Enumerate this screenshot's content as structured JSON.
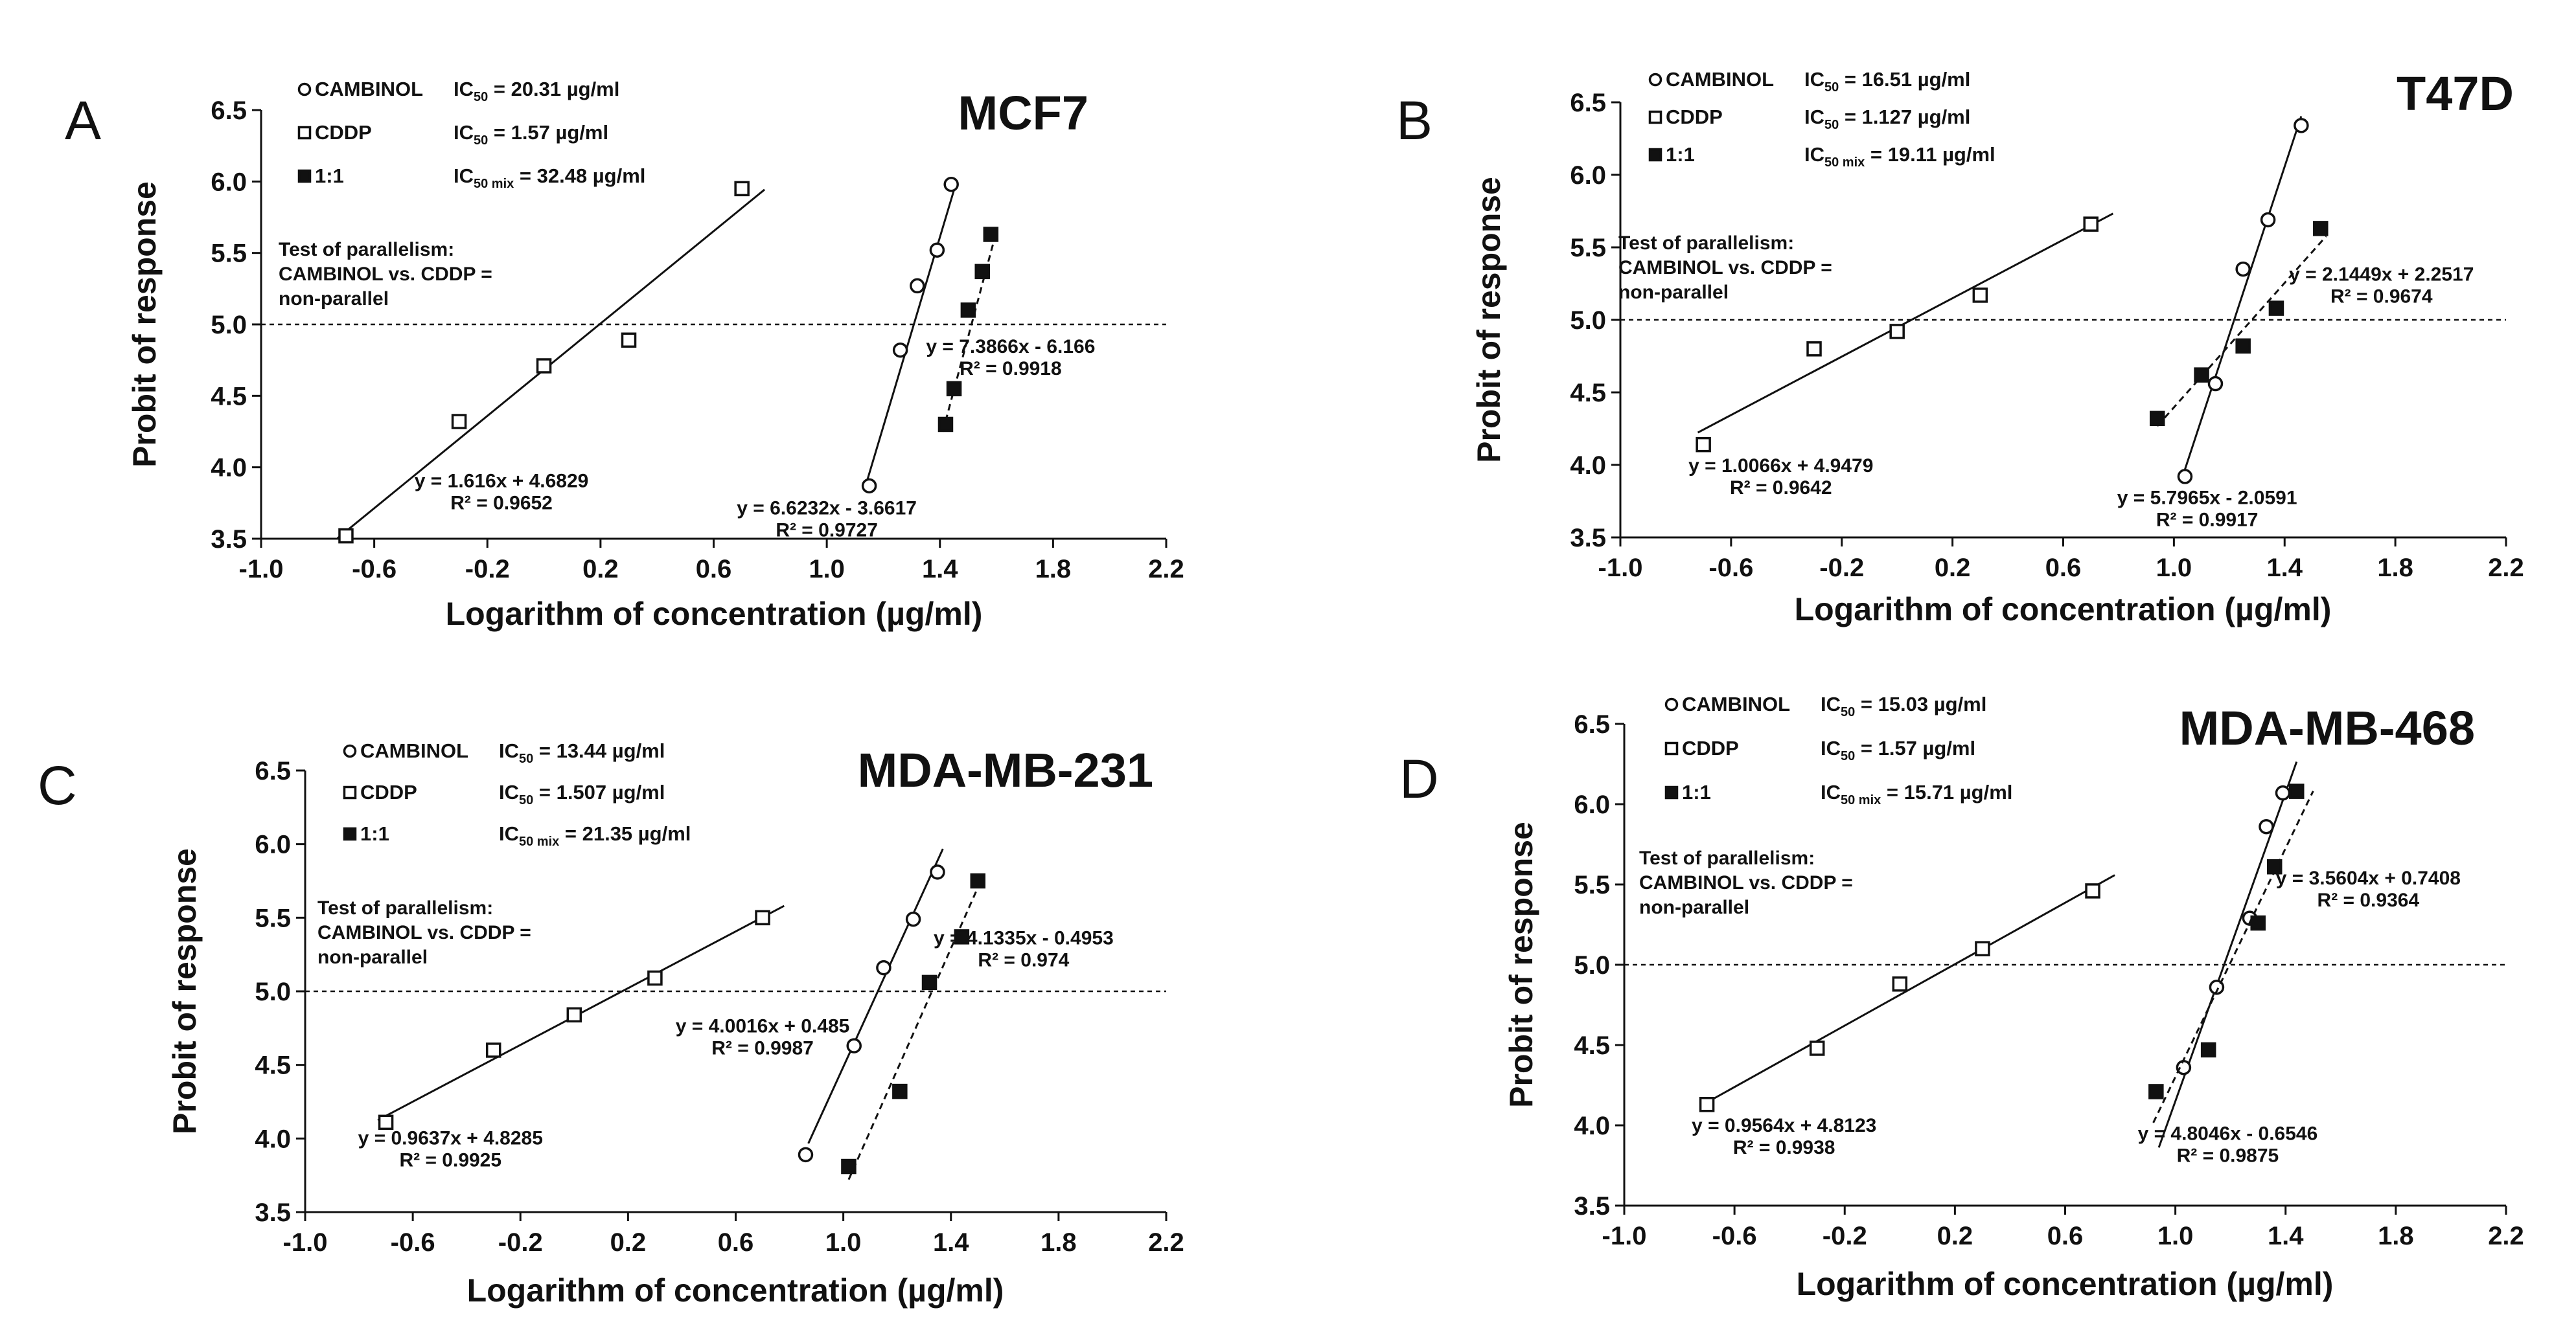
{
  "colors": {
    "ink": "#111111",
    "background": "#ffffff",
    "marker_fill_open": "#ffffff",
    "marker_fill_solid": "#111111"
  },
  "chart_data": [
    {
      "panel": "A",
      "type": "scatter",
      "title": "MCF7",
      "xlabel": "Logarithm of concentration (µg/ml)",
      "ylabel": "Probit of response",
      "xlim": [
        -1.0,
        2.2
      ],
      "ylim": [
        3.5,
        6.5
      ],
      "xticks": [
        "-1.0",
        "-0.6",
        "-0.2",
        "0.2",
        "0.6",
        "1.0",
        "1.4",
        "1.8",
        "2.2"
      ],
      "yticks": [
        "3.5",
        "4.0",
        "4.5",
        "5.0",
        "5.5",
        "6.0",
        "6.5"
      ],
      "reference_y": 5.0,
      "legend": [
        {
          "marker": "circle-open",
          "name": "CAMBINOL",
          "ic_label": "IC",
          "ic_sub": "50",
          "ic_value": " = 20.31 µg/ml"
        },
        {
          "marker": "square-open",
          "name": "CDDP",
          "ic_label": "IC",
          "ic_sub": "50",
          "ic_value": " = 1.57 µg/ml"
        },
        {
          "marker": "square-filled",
          "name": "1:1",
          "ic_label": "IC",
          "ic_sub": "50 mix",
          "ic_value": " = 32.48 µg/ml"
        }
      ],
      "note": [
        "Test of parallelism:",
        "CAMBINOL vs. CDDP =",
        "non-parallel"
      ],
      "series": [
        {
          "name": "CDDP",
          "marker": "square-open",
          "line": "solid",
          "x": [
            -0.7,
            -0.3,
            0.0,
            0.3,
            0.7
          ],
          "y": [
            3.52,
            4.32,
            4.71,
            4.89,
            5.95
          ],
          "fit": {
            "slope": 1.616,
            "intercept": 4.6829,
            "x_range": [
              -0.73,
              0.78
            ]
          },
          "eq_lines": [
            "y = 1.616x + 4.6829",
            "R² = 0.9652"
          ],
          "eq_pos": [
            -0.15,
            3.86
          ]
        },
        {
          "name": "CAMBINOL",
          "marker": "circle-open",
          "line": "solid",
          "x": [
            1.15,
            1.26,
            1.32,
            1.39,
            1.44
          ],
          "y": [
            3.87,
            4.82,
            5.27,
            5.52,
            5.98
          ],
          "fit": {
            "slope": 6.6232,
            "intercept": -3.6617,
            "x_range": [
              1.14,
              1.455
            ]
          },
          "eq_lines": [
            "y = 6.6232x - 3.6617",
            "R² = 0.9727"
          ],
          "eq_pos": [
            1.0,
            3.67
          ]
        },
        {
          "name": "1:1",
          "marker": "square-filled",
          "line": "dashed",
          "x": [
            1.42,
            1.45,
            1.5,
            1.55,
            1.58
          ],
          "y": [
            4.3,
            4.55,
            5.1,
            5.37,
            5.63
          ],
          "fit": {
            "slope": 7.3866,
            "intercept": -6.166,
            "x_range": [
              1.41,
              1.6
            ]
          },
          "eq_lines": [
            "y = 7.3866x - 6.166",
            "R² = 0.9918"
          ],
          "eq_pos": [
            1.65,
            4.8
          ]
        }
      ]
    },
    {
      "panel": "B",
      "type": "scatter",
      "title": "T47D",
      "xlabel": "Logarithm of concentration (µg/ml)",
      "ylabel": "Probit of response",
      "xlim": [
        -1.0,
        2.2
      ],
      "ylim": [
        3.5,
        6.5
      ],
      "xticks": [
        "-1.0",
        "-0.6",
        "-0.2",
        "0.2",
        "0.6",
        "1.0",
        "1.4",
        "1.8",
        "2.2"
      ],
      "yticks": [
        "3.5",
        "4.0",
        "4.5",
        "5.0",
        "5.5",
        "6.0",
        "6.5"
      ],
      "reference_y": 5.0,
      "legend": [
        {
          "marker": "circle-open",
          "name": "CAMBINOL",
          "ic_label": "IC",
          "ic_sub": "50",
          "ic_value": " = 16.51 µg/ml"
        },
        {
          "marker": "square-open",
          "name": "CDDP",
          "ic_label": "IC",
          "ic_sub": "50",
          "ic_value": " = 1.127 µg/ml"
        },
        {
          "marker": "square-filled",
          "name": "1:1",
          "ic_label": "IC",
          "ic_sub": "50 mix",
          "ic_value": " = 19.11 µg/ml"
        }
      ],
      "note": [
        "Test of parallelism:",
        "CAMBINOL vs. CDDP =",
        "non-parallel"
      ],
      "series": [
        {
          "name": "CDDP",
          "marker": "square-open",
          "line": "solid",
          "x": [
            -0.7,
            -0.3,
            0.0,
            0.3,
            0.7
          ],
          "y": [
            4.14,
            4.8,
            4.92,
            5.17,
            5.66
          ],
          "fit": {
            "slope": 1.0066,
            "intercept": 4.9479,
            "x_range": [
              -0.72,
              0.78
            ]
          },
          "eq_lines": [
            "y = 1.0066x + 4.9479",
            "R² = 0.9642"
          ],
          "eq_pos": [
            -0.42,
            3.95
          ]
        },
        {
          "name": "CAMBINOL",
          "marker": "circle-open",
          "line": "solid",
          "x": [
            1.04,
            1.15,
            1.25,
            1.34,
            1.46
          ],
          "y": [
            3.92,
            4.56,
            5.35,
            5.69,
            6.34
          ],
          "fit": {
            "slope": 5.7965,
            "intercept": -2.0591,
            "x_range": [
              1.03,
              1.46
            ]
          },
          "eq_lines": [
            "y = 5.7965x - 2.0591",
            "R² = 0.9917"
          ],
          "eq_pos": [
            1.12,
            3.73
          ]
        },
        {
          "name": "1:1",
          "marker": "square-filled",
          "line": "dashed",
          "x": [
            0.94,
            1.1,
            1.25,
            1.37,
            1.53
          ],
          "y": [
            4.32,
            4.62,
            4.82,
            5.08,
            5.63
          ],
          "fit": {
            "slope": 2.1449,
            "intercept": 2.2517,
            "x_range": [
              0.94,
              1.55
            ]
          },
          "eq_lines": [
            "y = 2.1449x + 2.2517",
            "R² = 0.9674"
          ],
          "eq_pos": [
            1.75,
            5.27
          ]
        }
      ]
    },
    {
      "panel": "C",
      "type": "scatter",
      "title": "MDA-MB-231",
      "xlabel": "Logarithm of concentration (µg/ml)",
      "ylabel": "Probit of response",
      "xlim": [
        -1.0,
        2.2
      ],
      "ylim": [
        3.5,
        6.5
      ],
      "xticks": [
        "-1.0",
        "-0.6",
        "-0.2",
        "0.2",
        "0.6",
        "1.0",
        "1.4",
        "1.8",
        "2.2"
      ],
      "yticks": [
        "3.5",
        "4.0",
        "4.5",
        "5.0",
        "5.5",
        "6.0",
        "6.5"
      ],
      "reference_y": 5.0,
      "legend": [
        {
          "marker": "circle-open",
          "name": "CAMBINOL",
          "ic_label": "IC",
          "ic_sub": "50",
          "ic_value": " = 13.44 µg/ml"
        },
        {
          "marker": "square-open",
          "name": "CDDP",
          "ic_label": "IC",
          "ic_sub": "50",
          "ic_value": " = 1.507 µg/ml"
        },
        {
          "marker": "square-filled",
          "name": "1:1",
          "ic_label": "IC",
          "ic_sub": "50 mix",
          "ic_value": " = 21.35 µg/ml"
        }
      ],
      "note": [
        "Test of parallelism:",
        "CAMBINOL vs. CDDP =",
        "non-parallel"
      ],
      "series": [
        {
          "name": "CDDP",
          "marker": "square-open",
          "line": "solid",
          "x": [
            -0.7,
            -0.3,
            0.0,
            0.3,
            0.7
          ],
          "y": [
            4.11,
            4.6,
            4.84,
            5.09,
            5.5
          ],
          "fit": {
            "slope": 0.9637,
            "intercept": 4.8285,
            "x_range": [
              -0.73,
              0.78
            ]
          },
          "eq_lines": [
            "y = 0.9637x + 4.8285",
            "R² = 0.9925"
          ],
          "eq_pos": [
            -0.46,
            3.96
          ]
        },
        {
          "name": "CAMBINOL",
          "marker": "circle-open",
          "line": "solid",
          "x": [
            0.86,
            1.04,
            1.15,
            1.26,
            1.35
          ],
          "y": [
            3.89,
            4.63,
            5.16,
            5.49,
            5.81
          ],
          "fit": {
            "slope": 4.0016,
            "intercept": 0.485,
            "x_range": [
              0.87,
              1.37
            ]
          },
          "eq_lines": [
            "y = 4.0016x + 0.485",
            "R² = 0.9987"
          ],
          "eq_pos": [
            0.7,
            4.72
          ]
        },
        {
          "name": "1:1",
          "marker": "square-filled",
          "line": "dashed",
          "x": [
            1.02,
            1.21,
            1.32,
            1.44,
            1.5
          ],
          "y": [
            3.81,
            4.32,
            5.06,
            5.37,
            5.75
          ],
          "fit": {
            "slope": 4.1335,
            "intercept": -0.4953,
            "x_range": [
              1.02,
              1.5
            ]
          },
          "eq_lines": [
            "y = 4.1335x - 0.4953",
            "R² = 0.974"
          ],
          "eq_pos": [
            1.67,
            5.32
          ]
        }
      ]
    },
    {
      "panel": "D",
      "type": "scatter",
      "title": "MDA-MB-468",
      "xlabel": "Logarithm of concentration (µg/ml)",
      "ylabel": "Probit of response",
      "xlim": [
        -1.0,
        2.2
      ],
      "ylim": [
        3.5,
        6.5
      ],
      "xticks": [
        "-1.0",
        "-0.6",
        "-0.2",
        "0.2",
        "0.6",
        "1.0",
        "1.4",
        "1.8",
        "2.2"
      ],
      "yticks": [
        "3.5",
        "4.0",
        "4.5",
        "5.0",
        "5.5",
        "6.0",
        "6.5"
      ],
      "reference_y": 5.0,
      "legend": [
        {
          "marker": "circle-open",
          "name": "CAMBINOL",
          "ic_label": "IC",
          "ic_sub": "50",
          "ic_value": " = 15.03 µg/ml"
        },
        {
          "marker": "square-open",
          "name": "CDDP",
          "ic_label": "IC",
          "ic_sub": "50",
          "ic_value": " = 1.57 µg/ml"
        },
        {
          "marker": "square-filled",
          "name": "1:1",
          "ic_label": "IC",
          "ic_sub": "50 mix",
          "ic_value": " = 15.71 µg/ml"
        }
      ],
      "note": [
        "Test of parallelism:",
        "CAMBINOL vs. CDDP =",
        "non-parallel"
      ],
      "series": [
        {
          "name": "CDDP",
          "marker": "square-open",
          "line": "solid",
          "x": [
            -0.7,
            -0.3,
            0.0,
            0.3,
            0.7
          ],
          "y": [
            4.13,
            4.48,
            4.88,
            5.1,
            5.46
          ],
          "fit": {
            "slope": 0.9564,
            "intercept": 4.8123,
            "x_range": [
              -0.72,
              0.78
            ]
          },
          "eq_lines": [
            "y = 0.9564x + 4.8123",
            "R² = 0.9938"
          ],
          "eq_pos": [
            -0.42,
            3.96
          ]
        },
        {
          "name": "CAMBINOL",
          "marker": "circle-open",
          "line": "solid",
          "x": [
            1.03,
            1.15,
            1.27,
            1.33,
            1.39
          ],
          "y": [
            4.36,
            4.86,
            5.29,
            5.86,
            6.07
          ],
          "fit": {
            "slope": 4.8046,
            "intercept": -0.6546,
            "x_range": [
              0.94,
              1.44
            ]
          },
          "eq_lines": [
            "y = 4.8046x - 0.6546",
            "R² = 0.9875"
          ],
          "eq_pos": [
            1.19,
            3.91
          ]
        },
        {
          "name": "1:1",
          "marker": "square-filled",
          "line": "dashed",
          "x": [
            0.93,
            1.12,
            1.3,
            1.36,
            1.44
          ],
          "y": [
            4.21,
            4.47,
            5.26,
            5.61,
            6.08
          ],
          "fit": {
            "slope": 3.5604,
            "intercept": 0.7408,
            "x_range": [
              0.92,
              1.5
            ]
          },
          "eq_lines": [
            "y = 3.5604x + 0.7408",
            "R² = 0.9364"
          ],
          "eq_pos": [
            1.7,
            5.5
          ]
        }
      ]
    }
  ]
}
